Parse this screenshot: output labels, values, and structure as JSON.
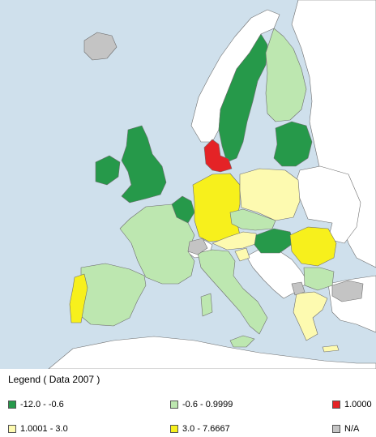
{
  "legend": {
    "title": "Legend ( Data 2007 )",
    "items": [
      {
        "label": "-12.0 - -0.6",
        "color": "#26994a"
      },
      {
        "label": "-0.6 - 0.9999",
        "color": "#bde7b0"
      },
      {
        "label": "1.0000",
        "color": "#e42326"
      },
      {
        "label": "1.0001 - 3.0",
        "color": "#fdfab0"
      },
      {
        "label": "3.0 - 7.6667",
        "color": "#f7f01c"
      },
      {
        "label": "N/A",
        "color": "#c4c4c4"
      }
    ]
  },
  "map_colors": {
    "sea": "#cfe0ec",
    "non_eu": "#ffffff",
    "dark_green": "#26994a",
    "light_green": "#bde7b0",
    "red": "#e42326",
    "pale_yellow": "#fdfab0",
    "yellow": "#f7f01c",
    "na": "#c4c4c4"
  }
}
